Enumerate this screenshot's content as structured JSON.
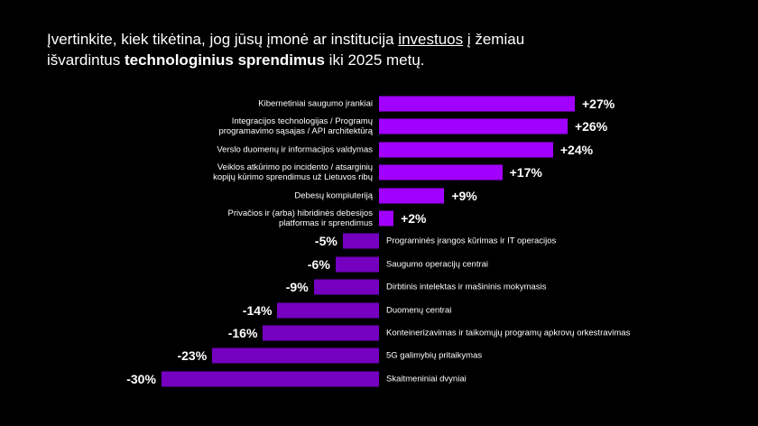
{
  "chart_data": {
    "type": "diverging-bar",
    "title": [
      [
        "Įvertinkite, kiek tikėtina, jog jūsų įmonė ar institucija ",
        "investuos",
        " į žemiau"
      ],
      [
        "išvardintus ",
        "technologinius sprendimus",
        " iki 2025 metų."
      ]
    ],
    "categories": [
      "Kibernetiniai saugumo įrankiai",
      "Integracijos technologijas / Programų\nprogramavimo sąsajas / API architektūrą",
      "Verslo duomenų ir informacijos valdymas",
      "Veiklos atkūrimo po incidento / atsarginių\nkopijų kūrimo sprendimus už Lietuvos ribų",
      "Debesų kompiuteriją",
      "Privačios ir (arba) hibridinės debesijos\nplatformas ir sprendimus",
      "Programinės įrangos kūrimas ir IT operacijos",
      "Saugumo operacijų centrai",
      "Dirbtinis intelektas ir mašininis mokymasis",
      "Duomenų centrai",
      "Konteinerizavimas ir taikomųjų programų apkrovų orkestravimas",
      "5G galimybių pritaikymas",
      "Skaitmeniniai dvyniai"
    ],
    "values": [
      27,
      26,
      24,
      17,
      9,
      2,
      -5,
      -6,
      -9,
      -14,
      -16,
      -23,
      -30
    ],
    "value_labels": [
      "+27%",
      "+26%",
      "+24%",
      "+17%",
      "+9%",
      "+2%",
      "-5%",
      "-6%",
      "-9%",
      "-14%",
      "-16%",
      "-23%",
      "-30%"
    ],
    "color_positive": "#a100ff",
    "color_negative": "#7500c0"
  }
}
